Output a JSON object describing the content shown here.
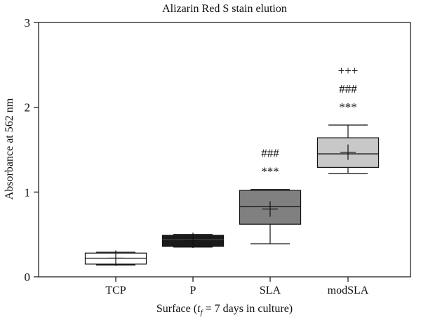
{
  "chart_data": {
    "type": "box",
    "title": "Alizarin Red S stain elution",
    "ylabel": "Absorbance at 562 nm",
    "xlabel": {
      "prefix": "Surface (",
      "var": "t",
      "sub": "f",
      "suffix": " = 7 days in culture)"
    },
    "ylim": [
      0,
      3
    ],
    "yticks": [
      "0",
      "1",
      "2",
      "3"
    ],
    "categories": [
      "TCP",
      "P",
      "SLA",
      "modSLA"
    ],
    "boxes": [
      {
        "name": "TCP",
        "min": 0.14,
        "q1": 0.15,
        "median": 0.22,
        "q3": 0.28,
        "max": 0.29,
        "mean": 0.22,
        "fill": "#ffffff",
        "annotations": []
      },
      {
        "name": "P",
        "min": 0.35,
        "q1": 0.36,
        "median": 0.44,
        "q3": 0.49,
        "max": 0.5,
        "mean": 0.43,
        "fill": "#1a1a1a",
        "annotations": []
      },
      {
        "name": "SLA",
        "min": 0.39,
        "q1": 0.62,
        "median": 0.83,
        "q3": 1.02,
        "max": 1.03,
        "mean": 0.8,
        "fill": "#808080",
        "annotations": [
          "###",
          "***"
        ]
      },
      {
        "name": "modSLA",
        "min": 1.22,
        "q1": 1.29,
        "median": 1.45,
        "q3": 1.64,
        "max": 1.79,
        "mean": 1.47,
        "fill": "#c8c8c8",
        "annotations": [
          "+++",
          "###",
          "***"
        ]
      }
    ]
  }
}
